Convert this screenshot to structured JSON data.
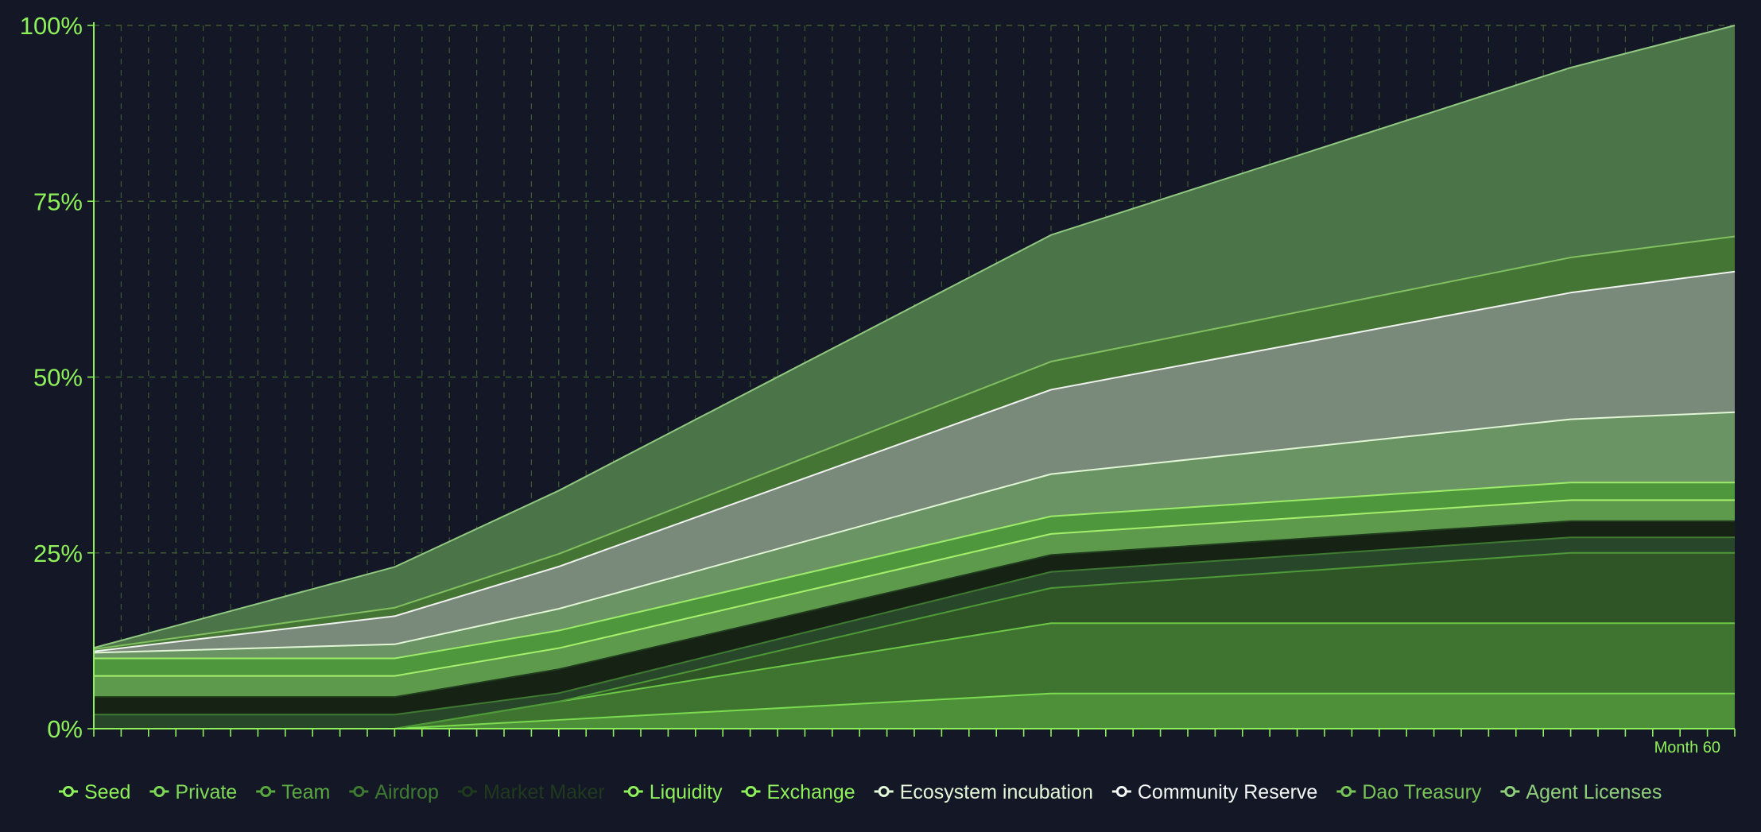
{
  "chart_data": {
    "type": "area",
    "stacked": true,
    "x": [
      0,
      11,
      17,
      35,
      54,
      60
    ],
    "xlim": [
      0,
      60
    ],
    "ylim": [
      0,
      100
    ],
    "yticks": [
      "0%",
      "25%",
      "50%",
      "75%",
      "100%"
    ],
    "x_end_label": "Month 60",
    "grid": true,
    "legend_position": "bottom",
    "series": [
      {
        "name": "Seed",
        "color": "#4e8f3a",
        "line": "#7bdc4f",
        "values": [
          0,
          0,
          1.25,
          5,
          5,
          5
        ]
      },
      {
        "name": "Private",
        "color": "#3e7430",
        "line": "#6cc847",
        "values": [
          0,
          0,
          2.6,
          10,
          10,
          10
        ]
      },
      {
        "name": "Team",
        "color": "#2f5527",
        "line": "#4f9a38",
        "values": [
          0,
          0,
          0,
          5,
          10,
          10
        ]
      },
      {
        "name": "Airdrop",
        "color": "#28472a",
        "line": "#3f7a32",
        "values": [
          2,
          2,
          1.2,
          2.3,
          2.2,
          2.2
        ]
      },
      {
        "name": "Market Maker",
        "color": "#162214",
        "line": "#1f3a1d",
        "values": [
          2.5,
          2.5,
          3.4,
          2.4,
          2.3,
          2.3
        ]
      },
      {
        "name": "Liquidity",
        "color": "#5e9a4b",
        "line": "#a4f06c",
        "values": [
          3,
          3,
          3,
          3,
          3,
          3
        ]
      },
      {
        "name": "Exchange",
        "color": "#4f973c",
        "line": "#9cec6a",
        "values": [
          2.5,
          2.5,
          2.5,
          2.5,
          2.5,
          2.5
        ]
      },
      {
        "name": "Ecosystem incubation",
        "color": "#6a9463",
        "line": "#e1f6d6",
        "values": [
          0.8,
          2,
          3.1,
          6,
          9,
          10
        ]
      },
      {
        "name": "Community Reserve",
        "color": "#7a8a7a",
        "line": "#f0f2f0",
        "values": [
          0.2,
          4,
          6,
          12,
          18,
          20
        ]
      },
      {
        "name": "Dao Treasury",
        "color": "#457534",
        "line": "#80c060",
        "values": [
          0.3,
          1.2,
          1.8,
          4,
          5,
          5
        ]
      },
      {
        "name": "Agent Licenses",
        "color": "#4c7449",
        "line": "#92c982",
        "values": [
          0.2,
          5.8,
          9,
          18,
          27,
          30
        ]
      }
    ],
    "legend_colors": {
      "Seed": "#8ef15a",
      "Private": "#7ed956",
      "Team": "#5aa840",
      "Airdrop": "#3f7a32",
      "Market Maker": "#1f3a1d",
      "Liquidity": "#8ef15a",
      "Exchange": "#8ef15a",
      "Ecosystem incubation": "#e4f7d8",
      "Community Reserve": "#f5f7f5",
      "Dao Treasury": "#78c457",
      "Agent Licenses": "#8fcf7a"
    },
    "axis_color": "#8ef15a",
    "grid_color": "#3c5a30"
  }
}
